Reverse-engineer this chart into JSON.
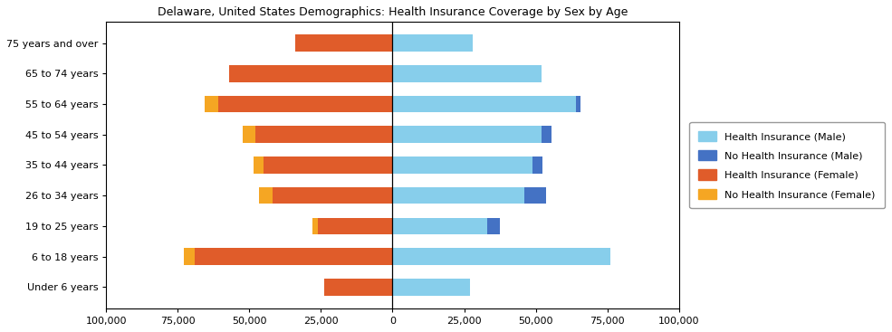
{
  "title": "Delaware, United States Demographics: Health Insurance Coverage by Sex by Age",
  "age_groups": [
    "Under 6 years",
    "6 to 18 years",
    "19 to 25 years",
    "26 to 34 years",
    "35 to 44 years",
    "45 to 54 years",
    "55 to 64 years",
    "65 to 74 years",
    "75 years and over"
  ],
  "health_insurance_male": [
    27000,
    76000,
    33000,
    46000,
    49000,
    52000,
    64000,
    52000,
    28000
  ],
  "no_health_insurance_male": [
    0,
    0,
    4500,
    7500,
    3500,
    3500,
    1500,
    0,
    0
  ],
  "health_insurance_female": [
    24000,
    69000,
    26000,
    42000,
    45000,
    48000,
    61000,
    57000,
    34000
  ],
  "no_health_insurance_female": [
    0,
    4000,
    2000,
    4500,
    3500,
    4500,
    4500,
    0,
    0
  ],
  "color_health_male": "#87CEEB",
  "color_no_health_male": "#4472C4",
  "color_health_female": "#E05C2A",
  "color_no_health_female": "#F5A623",
  "xlim": 100000,
  "xtick_vals": [
    -100000,
    -75000,
    -50000,
    -25000,
    0,
    25000,
    50000,
    75000,
    100000
  ],
  "xtick_labels": [
    "100,000",
    "75,000",
    "50,000",
    "25,000",
    "0",
    "25,000",
    "50,000",
    "75,000",
    "100,000"
  ]
}
